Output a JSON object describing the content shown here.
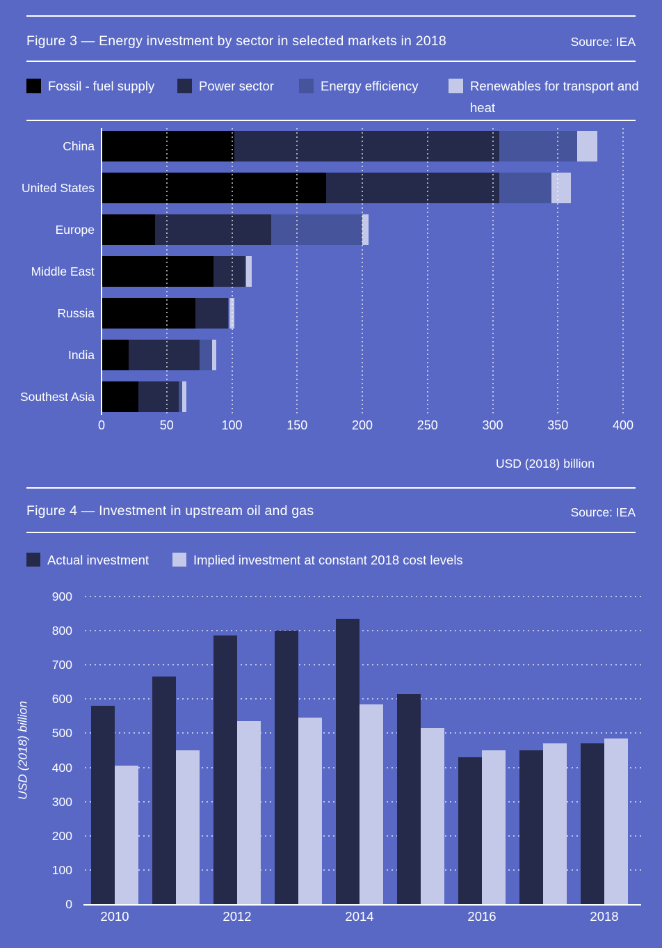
{
  "page": {
    "background": "#5868C4",
    "text_color": "#FFFFFF"
  },
  "chart_data": [
    {
      "type": "bar",
      "orientation": "horizontal",
      "stacked": true,
      "title": "Figure 3 — Energy investment by sector in selected markets in 2018",
      "source": "Source: IEA",
      "categories": [
        "China",
        "United States",
        "Europe",
        "Middle East",
        "Russia",
        "India",
        "Southest Asia"
      ],
      "series": [
        {
          "name": "Fossil - fuel supply",
          "color": "#000000",
          "values": [
            102,
            172,
            41,
            86,
            72,
            21,
            28
          ]
        },
        {
          "name": "Power sector",
          "color": "#252A4B",
          "values": [
            203,
            133,
            89,
            24,
            25,
            54,
            31
          ]
        },
        {
          "name": "Energy efficiency",
          "color": "#46549B",
          "values": [
            60,
            40,
            70,
            1,
            1,
            10,
            3
          ]
        },
        {
          "name": "Renewables for transport and heat",
          "color": "#C4C9E9",
          "values": [
            15,
            15,
            5,
            4,
            4,
            3,
            3
          ]
        }
      ],
      "xlabel": "USD (2018) billion",
      "xlim": [
        0,
        400
      ],
      "xticks": [
        0,
        50,
        100,
        150,
        200,
        250,
        300,
        350,
        400
      ],
      "grid": "vertical-dotted-overlay",
      "legend_position": "top"
    },
    {
      "type": "bar",
      "orientation": "vertical",
      "grouped": true,
      "title": "Figure 4 — Investment in upstream oil and gas",
      "source": "Source: IEA",
      "categories": [
        "2010",
        "2011",
        "2012",
        "2013",
        "2014",
        "2015",
        "2016",
        "2017",
        "2018"
      ],
      "x_tick_labels": [
        "2010",
        "2012",
        "2014",
        "2016",
        "2018"
      ],
      "series": [
        {
          "name": "Actual investment",
          "color": "#252A4B",
          "values": [
            580,
            665,
            785,
            800,
            835,
            615,
            430,
            450,
            470
          ]
        },
        {
          "name": "Implied investment at constant 2018 cost levels",
          "color": "#C4C9E9",
          "values": [
            405,
            450,
            535,
            545,
            585,
            515,
            450,
            470,
            485
          ]
        }
      ],
      "ylabel": "USD (2018) billion",
      "ylim": [
        0,
        900
      ],
      "yticks": [
        0,
        100,
        200,
        300,
        400,
        500,
        600,
        700,
        800,
        900
      ],
      "grid": "horizontal-dotted",
      "legend_position": "top"
    }
  ]
}
